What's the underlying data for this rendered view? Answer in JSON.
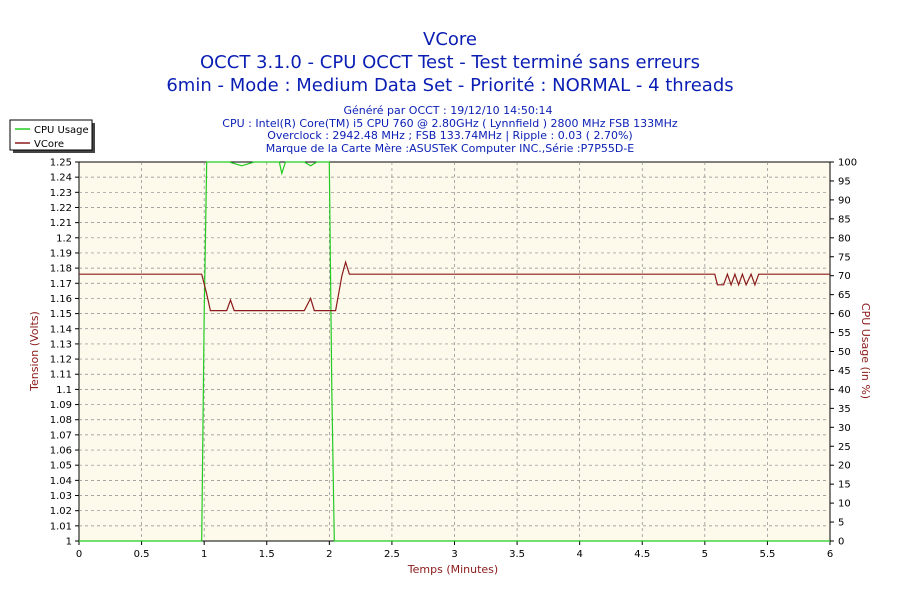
{
  "header": {
    "title": "VCore",
    "subtitle1": "OCCT 3.1.0 - CPU OCCT Test - Test terminé sans erreurs",
    "subtitle2": "6min - Mode : Medium Data Set - Priorité : NORMAL - 4 threads"
  },
  "info": {
    "line1": "Généré par OCCT : 19/12/10 14:50:14",
    "line2": "CPU : Intel(R) Core(TM) i5 CPU 760 @ 2.80GHz ( Lynnfield ) 2800 MHz FSB 133MHz",
    "line3": "Overclock : 2942.48 MHz ; FSB 133.74MHz | Ripple : 0.03 ( 2.70%)",
    "line4": "Marque de la Carte Mère :ASUSTeK Computer INC.,Série :P7P55D-E"
  },
  "legend": {
    "items": [
      "CPU Usage",
      "VCore"
    ]
  },
  "colors": {
    "cpu": "#22cc22",
    "vcore": "#8b1a1a",
    "plot_bg": "#fdfaec",
    "grid": "#888888",
    "text": "#0a1eb4"
  },
  "chart_data": {
    "type": "line",
    "title": "VCore",
    "xlabel": "Temps (Minutes)",
    "ylabel": "Tension (Volts)",
    "y2label": "CPU Usage (in %)",
    "xlim": [
      0,
      6
    ],
    "ylim": [
      1.0,
      1.25
    ],
    "y2lim": [
      0,
      100
    ],
    "x_ticks": [
      "0",
      "0.5",
      "1",
      "1.5",
      "2",
      "2.5",
      "3",
      "3.5",
      "4",
      "4.5",
      "5",
      "5.5",
      "6"
    ],
    "y_ticks": [
      "1",
      "1.01",
      "1.02",
      "1.03",
      "1.04",
      "1.05",
      "1.06",
      "1.07",
      "1.08",
      "1.09",
      "1.1",
      "1.11",
      "1.12",
      "1.13",
      "1.14",
      "1.15",
      "1.16",
      "1.17",
      "1.18",
      "1.19",
      "1.2",
      "1.21",
      "1.22",
      "1.23",
      "1.24",
      "1.25"
    ],
    "y2_ticks": [
      "0",
      "5",
      "10",
      "15",
      "20",
      "25",
      "30",
      "35",
      "40",
      "45",
      "50",
      "55",
      "60",
      "65",
      "70",
      "75",
      "80",
      "85",
      "90",
      "95",
      "100"
    ],
    "grid": true,
    "legend_position": "top-left",
    "series": [
      {
        "name": "CPU Usage",
        "axis": "right",
        "points": [
          [
            0,
            0
          ],
          [
            0.98,
            0
          ],
          [
            1.0,
            60
          ],
          [
            1.02,
            100
          ],
          [
            1.2,
            100
          ],
          [
            1.3,
            99
          ],
          [
            1.4,
            100
          ],
          [
            1.6,
            100
          ],
          [
            1.62,
            97
          ],
          [
            1.65,
            100
          ],
          [
            1.8,
            100
          ],
          [
            1.85,
            99
          ],
          [
            1.9,
            100
          ],
          [
            2.0,
            100
          ],
          [
            2.02,
            40
          ],
          [
            2.04,
            0
          ],
          [
            6,
            0
          ]
        ]
      },
      {
        "name": "VCore",
        "axis": "left",
        "points": [
          [
            0,
            1.176
          ],
          [
            0.98,
            1.176
          ],
          [
            1.02,
            1.163
          ],
          [
            1.05,
            1.152
          ],
          [
            1.12,
            1.152
          ],
          [
            1.18,
            1.152
          ],
          [
            1.21,
            1.159
          ],
          [
            1.24,
            1.152
          ],
          [
            1.8,
            1.152
          ],
          [
            1.85,
            1.16
          ],
          [
            1.88,
            1.152
          ],
          [
            2.0,
            1.152
          ],
          [
            2.05,
            1.152
          ],
          [
            2.1,
            1.175
          ],
          [
            2.13,
            1.184
          ],
          [
            2.16,
            1.176
          ],
          [
            5.08,
            1.176
          ],
          [
            5.1,
            1.169
          ],
          [
            5.15,
            1.169
          ],
          [
            5.18,
            1.176
          ],
          [
            5.21,
            1.169
          ],
          [
            5.24,
            1.176
          ],
          [
            5.27,
            1.169
          ],
          [
            5.3,
            1.176
          ],
          [
            5.33,
            1.169
          ],
          [
            5.37,
            1.176
          ],
          [
            5.4,
            1.169
          ],
          [
            5.43,
            1.176
          ],
          [
            6,
            1.176
          ]
        ]
      }
    ]
  }
}
